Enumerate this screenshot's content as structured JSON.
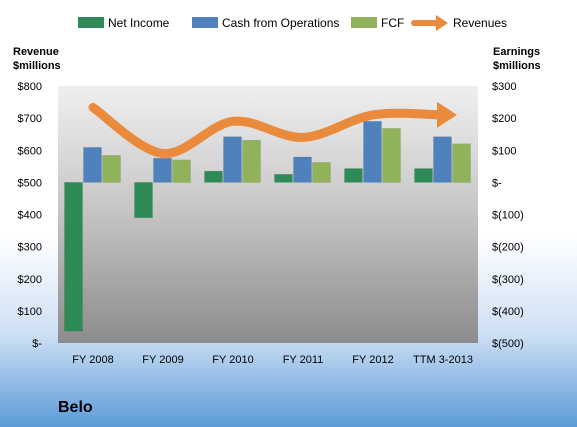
{
  "chart_data": {
    "type": "bar",
    "title": "",
    "company": "Belo",
    "categories": [
      "FY 2008",
      "FY 2009",
      "FY 2010",
      "FY 2011",
      "FY 2012",
      "TTM 3-2013"
    ],
    "series": [
      {
        "name": "Net Income",
        "axis": "right",
        "color": "#2e8b57",
        "values": [
          -463,
          -110,
          35,
          25,
          43,
          43
        ]
      },
      {
        "name": "Cash from Operations",
        "axis": "right",
        "color": "#4f81bd",
        "values": [
          109,
          75,
          142,
          79,
          190,
          142
        ]
      },
      {
        "name": "FCF",
        "axis": "right",
        "color": "#8fb25a",
        "values": [
          84,
          70,
          131,
          62,
          168,
          120
        ]
      },
      {
        "name": "Revenues",
        "axis": "left",
        "type": "line",
        "color": "#e98a3c",
        "values": [
          733,
          590,
          690,
          640,
          710,
          710
        ]
      }
    ],
    "left_axis": {
      "title_line1": "Revenue",
      "title_line2": "$millions",
      "ylim": [
        0,
        800
      ],
      "ticks": [
        0,
        100,
        200,
        300,
        400,
        500,
        600,
        700,
        800
      ],
      "tick_labels": [
        "$-",
        "$100",
        "$200",
        "$300",
        "$400",
        "$500",
        "$600",
        "$700",
        "$800"
      ]
    },
    "right_axis": {
      "title_line1": "Earnings",
      "title_line2": "$millions",
      "ylim": [
        -500,
        300
      ],
      "ticks": [
        300,
        200,
        100,
        0,
        -100,
        -200,
        -300,
        -400,
        -500
      ],
      "tick_labels": [
        "$300",
        "$200",
        "$100",
        "$-",
        "$(100)",
        "$(200)",
        "$(300)",
        "$(400)",
        "$(500)"
      ]
    },
    "legend_position": "top",
    "grid": false
  }
}
